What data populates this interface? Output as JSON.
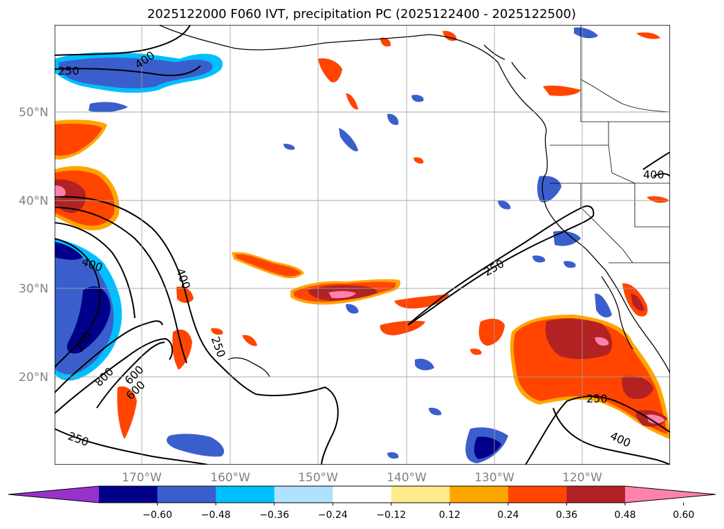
{
  "title": "2025122000 F060 IVT, precipitation PC (2025122400 - 2025122500)",
  "lat_labels": [
    "50°N",
    "40°N",
    "30°N",
    "20°N"
  ],
  "lon_labels": [
    "170°W",
    "160°W",
    "150°W",
    "140°W",
    "130°W",
    "120°W"
  ],
  "contour_labels": [
    "400",
    "250",
    "400",
    "400",
    "250",
    "800",
    "600",
    "600",
    "250",
    "250",
    "250",
    "400",
    "400",
    "250"
  ],
  "colorbar": {
    "ticks": [
      "−0.60",
      "−0.48",
      "−0.36",
      "−0.24",
      "−0.12",
      "0.12",
      "0.24",
      "0.36",
      "0.48",
      "0.60"
    ],
    "colors": [
      "#9932cc",
      "#00008b",
      "#3a5fcd",
      "#00bfff",
      "#b0e2ff",
      "#ffffff",
      "#ffec8b",
      "#ffa500",
      "#ff4500",
      "#b22222",
      "#ff82ab"
    ]
  }
}
